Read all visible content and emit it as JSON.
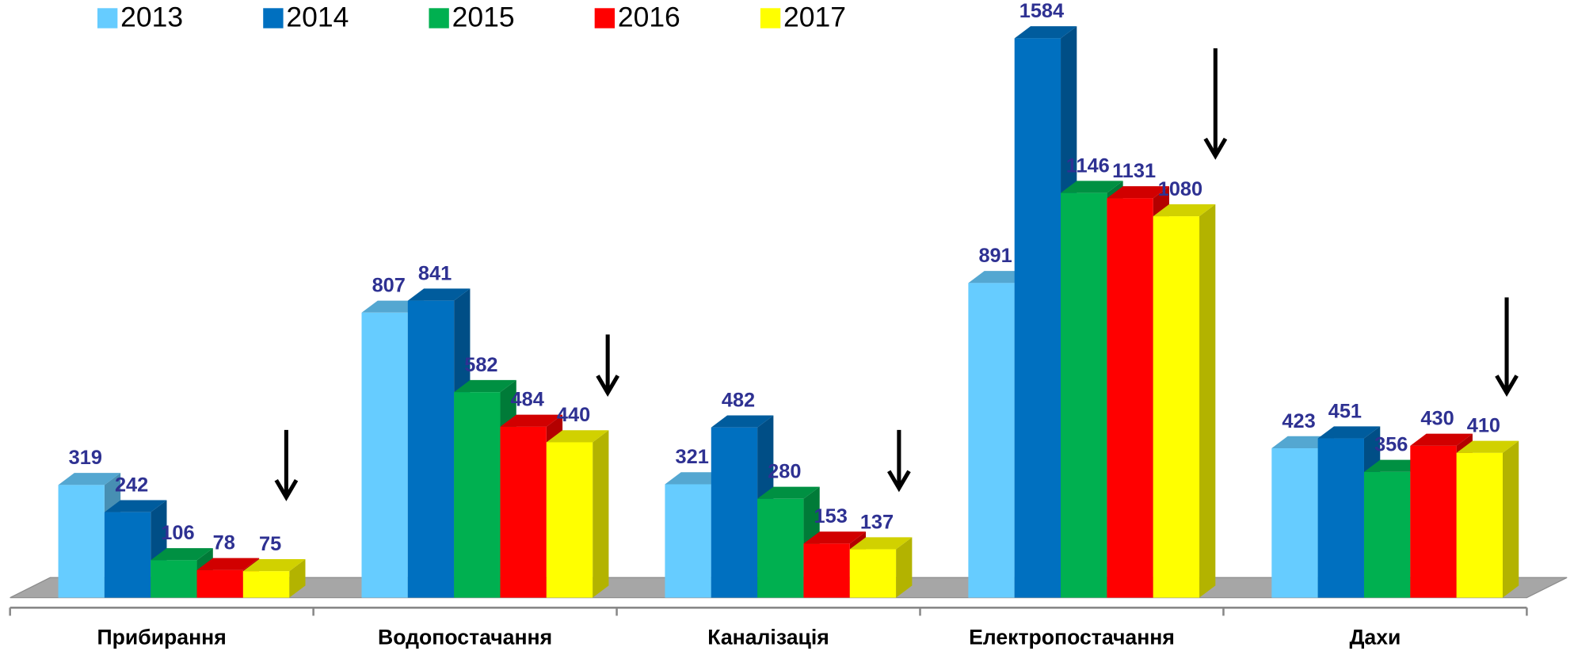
{
  "chart_data": {
    "type": "bar3d",
    "categories": [
      "Прибирання",
      "Водопостачання",
      "Каналізація",
      "Електропостачання",
      "Дахи"
    ],
    "series": [
      {
        "name": "2013",
        "color": "#66ccff",
        "values": [
          319,
          807,
          321,
          891,
          423
        ]
      },
      {
        "name": "2014",
        "color": "#0070c0",
        "values": [
          242,
          841,
          482,
          1584,
          451
        ]
      },
      {
        "name": "2015",
        "color": "#00b050",
        "values": [
          106,
          582,
          280,
          1146,
          356
        ]
      },
      {
        "name": "2016",
        "color": "#ff0000",
        "values": [
          78,
          484,
          153,
          1131,
          430
        ]
      },
      {
        "name": "2017",
        "color": "#ffff00",
        "values": [
          75,
          440,
          137,
          1080,
          410
        ]
      }
    ],
    "legend": "top"
  }
}
